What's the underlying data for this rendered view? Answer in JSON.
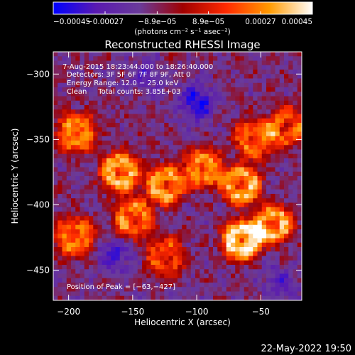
{
  "chart_data": {
    "type": "heatmap",
    "title": "Reconstructed RHESSI Image",
    "xlabel": "Heliocentric X (arcsec)",
    "ylabel": "Heliocentric Y (arcsec)",
    "xlim": [
      -212,
      -18
    ],
    "ylim": [
      -473,
      -283
    ],
    "x_ticks": [
      -200,
      -150,
      -100,
      -50
    ],
    "y_ticks": [
      -300,
      -350,
      -400,
      -450
    ],
    "x_tick_labels": [
      "−200",
      "−150",
      "−100",
      "−50"
    ],
    "y_tick_labels": [
      "−300",
      "−350",
      "−400",
      "−450"
    ],
    "colorbar": {
      "range": [
        -0.00045,
        0.00045
      ],
      "ticks": [
        -0.00045,
        -0.00027,
        -8.9e-05,
        8.9e-05,
        0.00027,
        0.00045
      ],
      "tick_labels": [
        "−0.00045",
        "−0.00027",
        "−8.9e−05",
        "8.9e−05",
        "0.00027",
        "0.00045"
      ],
      "units_text": "(photons cm⁻² s⁻¹ asec⁻²)",
      "colors": [
        "#0000ff",
        "#5a1ab0",
        "#6a3b9a",
        "#a00000",
        "#ff2a00",
        "#ff9a00",
        "#ffffff"
      ]
    },
    "annotations": {
      "time_range": "7‐Aug‐2015 18:23:44.000 to 18:26:40.000",
      "detectors": "Detectors: 3F 5F 6F 7F 8F 9F, Att 0",
      "energy": "Energy Range: 12.0 − 25.0 keV",
      "clean_line": "Clean     Total counts: 3.85E+03",
      "peak": "Position of Peak = [−63,−427]"
    },
    "hot_regions": [
      {
        "x": -194,
        "y": -345,
        "level": 0.75
      },
      {
        "x": -160,
        "y": -375,
        "level": 0.85
      },
      {
        "x": -125,
        "y": -385,
        "level": 0.8
      },
      {
        "x": -95,
        "y": -372,
        "level": 0.75
      },
      {
        "x": -65,
        "y": -385,
        "level": 0.85
      },
      {
        "x": -150,
        "y": -410,
        "level": 0.7
      },
      {
        "x": -65,
        "y": -427,
        "level": 1.0
      },
      {
        "x": -40,
        "y": -415,
        "level": 0.85
      },
      {
        "x": -195,
        "y": -425,
        "level": 0.7
      },
      {
        "x": -55,
        "y": -350,
        "level": 0.65
      },
      {
        "x": -30,
        "y": -340,
        "level": 0.6
      },
      {
        "x": -125,
        "y": -440,
        "level": 0.55
      }
    ],
    "cool_regions": [
      {
        "x": -100,
        "y": -322,
        "level": -0.7
      },
      {
        "x": -165,
        "y": -440,
        "level": -0.5
      },
      {
        "x": -35,
        "y": -460,
        "level": -0.4
      },
      {
        "x": -140,
        "y": -300,
        "level": -0.3
      }
    ]
  },
  "footer": {
    "timestamp": "22‐May‐2022 19:50"
  }
}
